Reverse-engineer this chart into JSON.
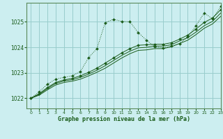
{
  "title": "Graphe pression niveau de la mer (hPa)",
  "bg_color": "#cceef0",
  "grid_color": "#99cccc",
  "line_color": "#1a5c1a",
  "border_color": "#5a8a5a",
  "xlim": [
    -0.5,
    23
  ],
  "ylim": [
    1021.6,
    1025.75
  ],
  "yticks": [
    1022,
    1023,
    1024,
    1025
  ],
  "xticks": [
    0,
    1,
    2,
    3,
    4,
    5,
    6,
    7,
    8,
    9,
    10,
    11,
    12,
    13,
    14,
    15,
    16,
    17,
    18,
    19,
    20,
    21,
    22,
    23
  ],
  "series": [
    {
      "x": [
        0,
        1,
        2,
        3,
        4,
        5,
        6,
        7,
        8,
        9,
        10,
        11,
        12,
        13,
        14,
        15,
        16,
        17,
        18,
        19,
        20,
        21,
        22,
        23
      ],
      "y": [
        1022.0,
        1022.25,
        1022.55,
        1022.75,
        1022.82,
        1022.88,
        1023.05,
        1023.6,
        1023.95,
        1024.97,
        1025.1,
        1025.02,
        1025.0,
        1024.58,
        1024.28,
        1024.02,
        1023.98,
        1024.05,
        1024.15,
        1024.4,
        1024.85,
        1025.35,
        1025.12,
        1025.6
      ],
      "dotted": true,
      "marker": true
    },
    {
      "x": [
        0,
        1,
        2,
        3,
        4,
        5,
        6,
        7,
        8,
        9,
        10,
        11,
        12,
        13,
        14,
        15,
        16,
        17,
        18,
        19,
        20,
        21,
        22,
        23
      ],
      "y": [
        1022.0,
        1022.18,
        1022.42,
        1022.62,
        1022.72,
        1022.78,
        1022.88,
        1023.02,
        1023.18,
        1023.38,
        1023.58,
        1023.78,
        1023.95,
        1024.08,
        1024.1,
        1024.12,
        1024.12,
        1024.18,
        1024.32,
        1024.48,
        1024.72,
        1024.98,
        1025.15,
        1025.48
      ],
      "dotted": false,
      "marker": true
    },
    {
      "x": [
        0,
        1,
        2,
        3,
        4,
        5,
        6,
        7,
        8,
        9,
        10,
        11,
        12,
        13,
        14,
        15,
        16,
        17,
        18,
        19,
        20,
        21,
        22,
        23
      ],
      "y": [
        1022.0,
        1022.15,
        1022.38,
        1022.58,
        1022.68,
        1022.73,
        1022.82,
        1022.95,
        1023.1,
        1023.28,
        1023.48,
        1023.68,
        1023.85,
        1023.98,
        1024.0,
        1024.05,
        1024.05,
        1024.1,
        1024.25,
        1024.38,
        1024.6,
        1024.85,
        1025.02,
        1025.35
      ],
      "dotted": false,
      "marker": false
    },
    {
      "x": [
        0,
        1,
        2,
        3,
        4,
        5,
        6,
        7,
        8,
        9,
        10,
        11,
        12,
        13,
        14,
        15,
        16,
        17,
        18,
        19,
        20,
        21,
        22,
        23
      ],
      "y": [
        1022.0,
        1022.12,
        1022.33,
        1022.52,
        1022.62,
        1022.67,
        1022.75,
        1022.88,
        1023.02,
        1023.18,
        1023.38,
        1023.58,
        1023.75,
        1023.88,
        1023.9,
        1023.95,
        1023.95,
        1024.02,
        1024.15,
        1024.28,
        1024.5,
        1024.75,
        1024.92,
        1025.22
      ],
      "dotted": false,
      "marker": false
    }
  ]
}
